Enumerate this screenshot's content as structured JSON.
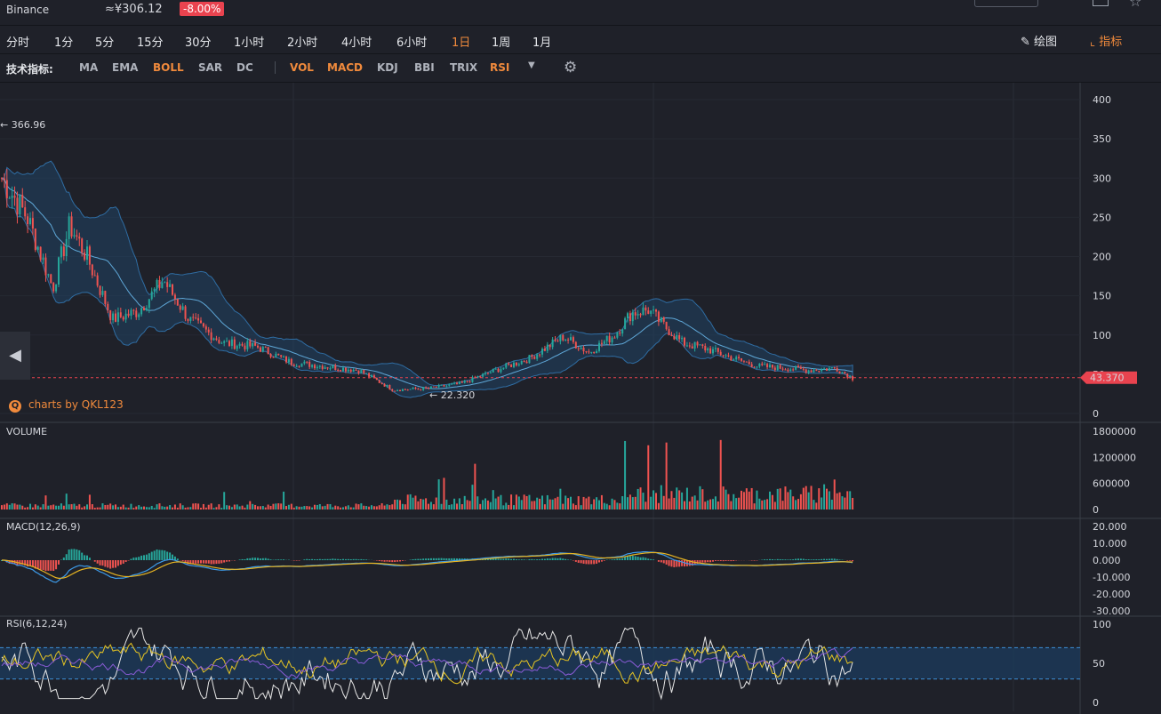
{
  "header": {
    "exchange": "Binance",
    "price": "≈¥306.12",
    "change": "-8.00%"
  },
  "timeframes": [
    "分时",
    "1分",
    "5分",
    "15分",
    "30分",
    "1小时",
    "2小时",
    "4小时",
    "6小时",
    "1日",
    "1周",
    "1月"
  ],
  "active_timeframe": "1日",
  "toolbar": {
    "draw_label": "绘图",
    "indicator_label": "指标"
  },
  "indicators": {
    "label": "技术指标:",
    "main": [
      "MA",
      "EMA",
      "BOLL",
      "SAR",
      "DC"
    ],
    "sub": [
      "VOL",
      "MACD",
      "KDJ",
      "BBI",
      "TRIX",
      "RSI"
    ],
    "active": [
      "BOLL",
      "VOL",
      "MACD",
      "RSI"
    ]
  },
  "credit": "charts by QKL123",
  "colors": {
    "up": "#26a69a",
    "down": "#ef5350",
    "accent": "#f08a3c",
    "boll_band": "#1f4a72",
    "macd_dif": "#3d9be9",
    "macd_dea": "#e6b422",
    "rsi_band": "#1c3a5a"
  },
  "chart_data": [
    {
      "type": "candlestick",
      "panel": "price",
      "y_ticks": [
        "0",
        "50",
        "100",
        "150",
        "200",
        "250",
        "300",
        "350",
        "400"
      ],
      "ylim": [
        0,
        400
      ],
      "high_marker": "366.96",
      "low_marker": "22.320",
      "last_price": "43.370",
      "overlay": "BOLL",
      "trend": {
        "x": [
          0,
          0.03,
          0.06,
          0.08,
          0.1,
          0.13,
          0.16,
          0.19,
          0.22,
          0.26,
          0.3,
          0.34,
          0.38,
          0.42,
          0.46,
          0.5,
          0.54,
          0.58,
          0.62,
          0.66,
          0.69,
          0.72,
          0.74,
          0.76,
          0.78,
          0.8,
          0.83,
          0.86,
          0.89,
          0.92,
          0.95,
          0.98,
          1.0
        ],
        "y": [
          300,
          250,
          160,
          240,
          200,
          120,
          130,
          170,
          120,
          90,
          85,
          65,
          60,
          55,
          30,
          32,
          38,
          55,
          70,
          98,
          78,
          100,
          128,
          132,
          110,
          90,
          82,
          70,
          60,
          58,
          55,
          58,
          45
        ]
      }
    },
    {
      "type": "bar",
      "panel": "volume",
      "title": "VOLUME",
      "y_ticks": [
        "0",
        "600000",
        "1200000",
        "1800000"
      ],
      "ylim": [
        0,
        1800000
      ]
    },
    {
      "type": "line",
      "panel": "macd",
      "title": "MACD(12,26,9)",
      "y_ticks": [
        "20.000",
        "10.000",
        "0.000",
        "-10.000",
        "-20.000",
        "-30.000"
      ],
      "ylim": [
        -30,
        20
      ]
    },
    {
      "type": "line",
      "panel": "rsi",
      "title": "RSI(6,12,24)",
      "y_ticks": [
        "0",
        "50",
        "100"
      ],
      "ylim": [
        0,
        100
      ],
      "band": [
        30,
        70
      ]
    }
  ]
}
